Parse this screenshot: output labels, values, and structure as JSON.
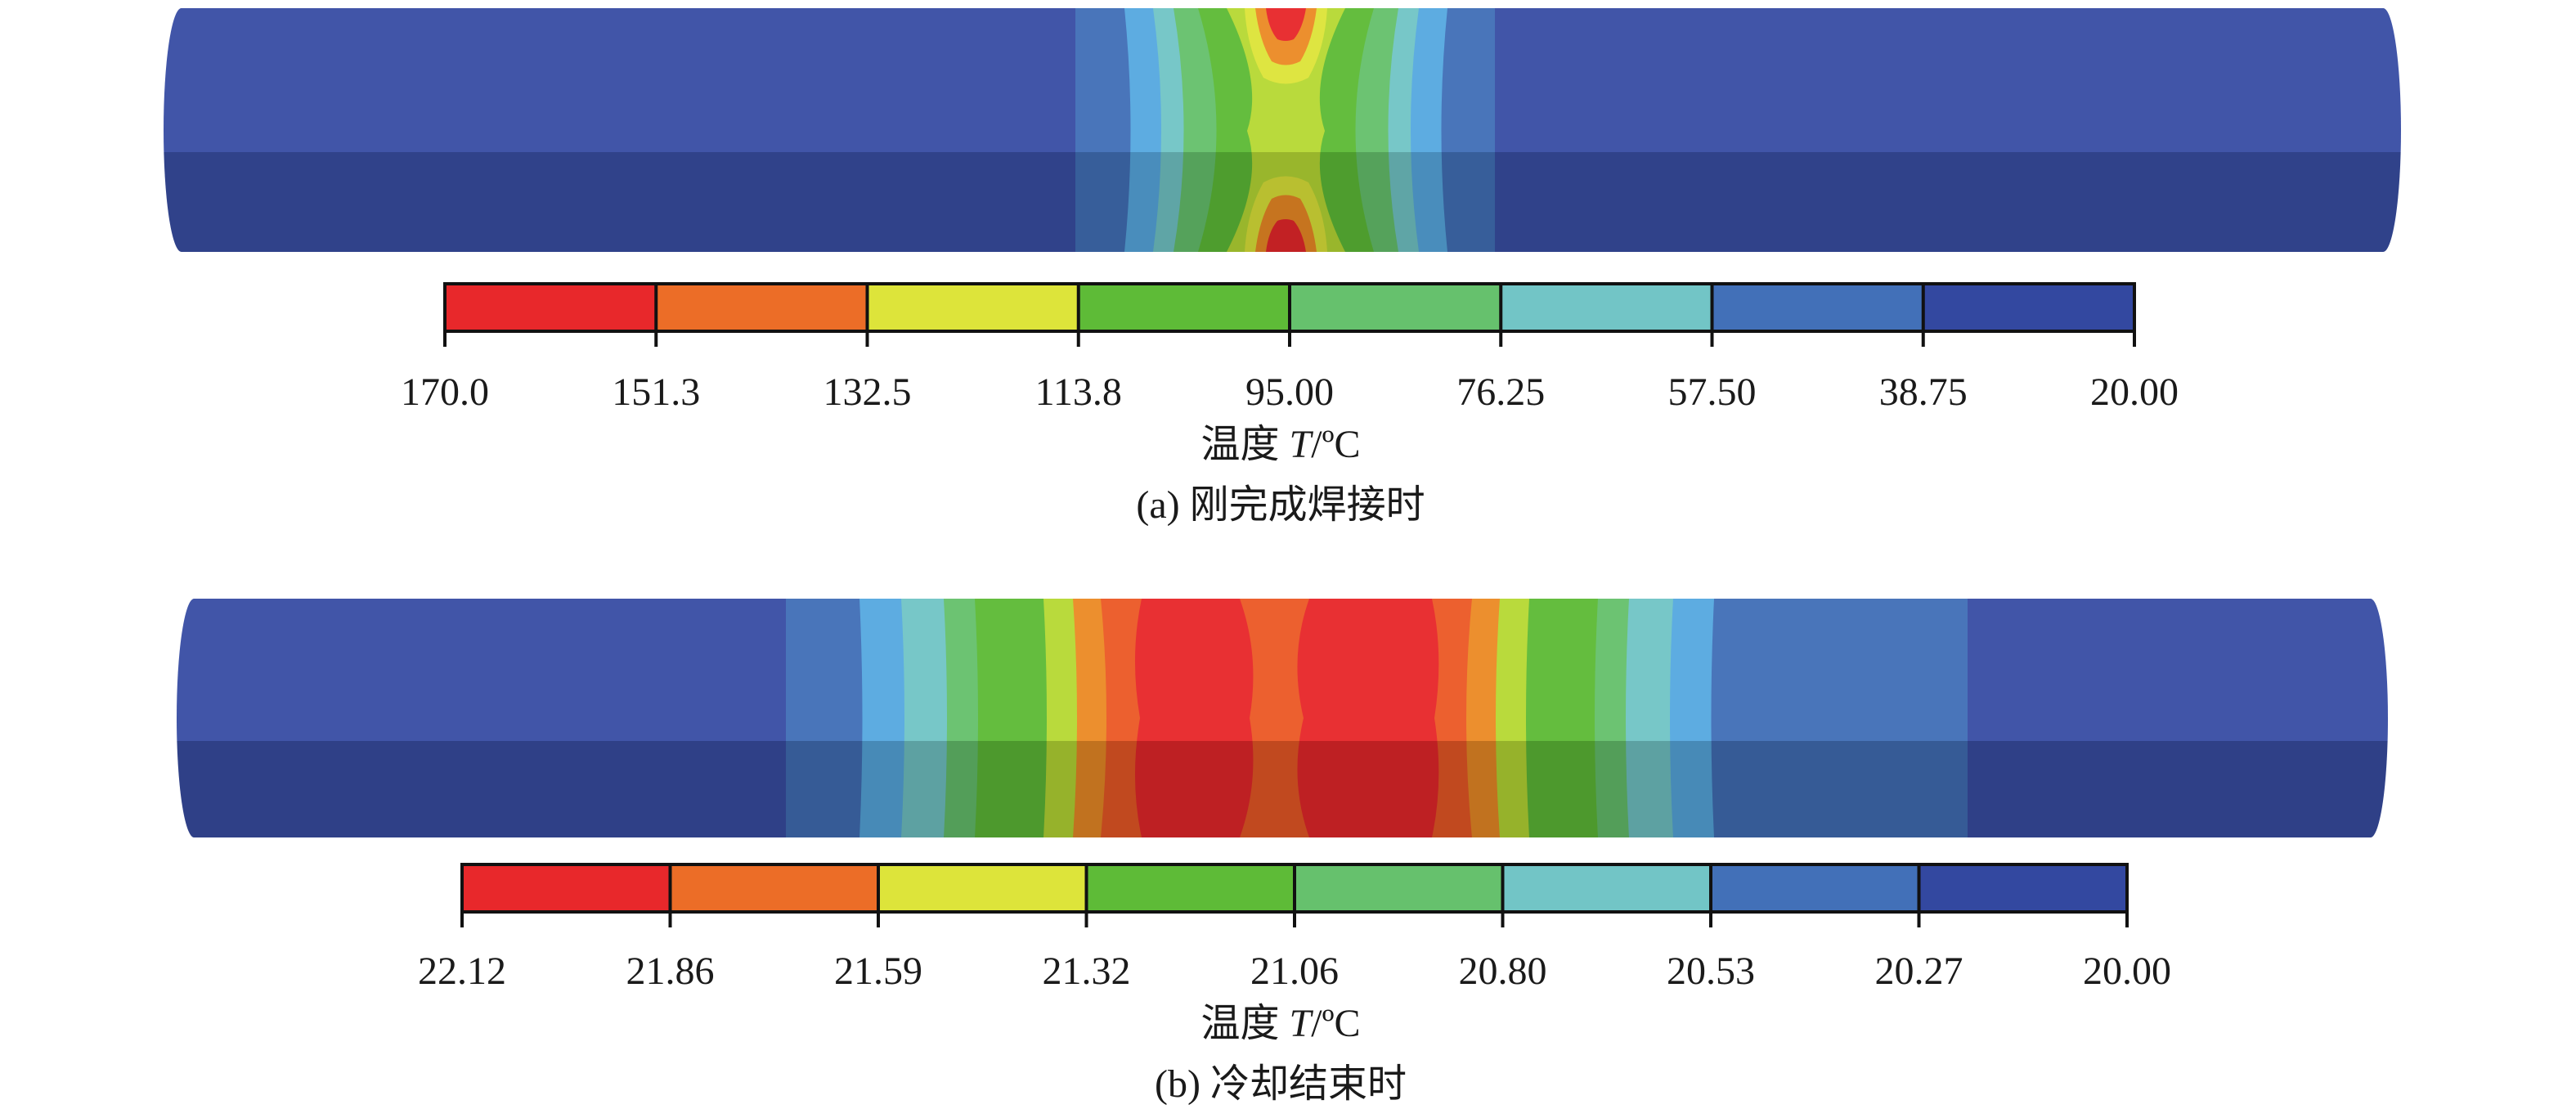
{
  "panels": [
    {
      "id": "a",
      "caption": "(a) 刚完成焊接时",
      "axis_title_prefix": "温度 ",
      "axis_title_var": "T",
      "axis_title_unit": "/ºC",
      "tick_labels": [
        "170.0",
        "151.3",
        "132.5",
        "113.8",
        "95.00",
        "76.25",
        "57.50",
        "38.75",
        "20.00"
      ],
      "band_colors": [
        "#e8282b",
        "#ec6d27",
        "#dde43a",
        "#5ebb37",
        "#66c16d",
        "#72c5c6",
        "#4270b8",
        "#3348a0"
      ],
      "pipe_base_color": "#3a4fa5"
    },
    {
      "id": "b",
      "caption": "(b) 冷却结束时",
      "axis_title_prefix": "温度 ",
      "axis_title_var": "T",
      "axis_title_unit": "/ºC",
      "tick_labels": [
        "22.12",
        "21.86",
        "21.59",
        "21.32",
        "21.06",
        "20.80",
        "20.53",
        "20.27",
        "20.00"
      ],
      "band_colors": [
        "#e8282b",
        "#ec6d27",
        "#dde43a",
        "#5ebb37",
        "#66c16d",
        "#72c5c6",
        "#4270b8",
        "#3348a0"
      ],
      "pipe_base_color": "#3a4fa5"
    }
  ]
}
